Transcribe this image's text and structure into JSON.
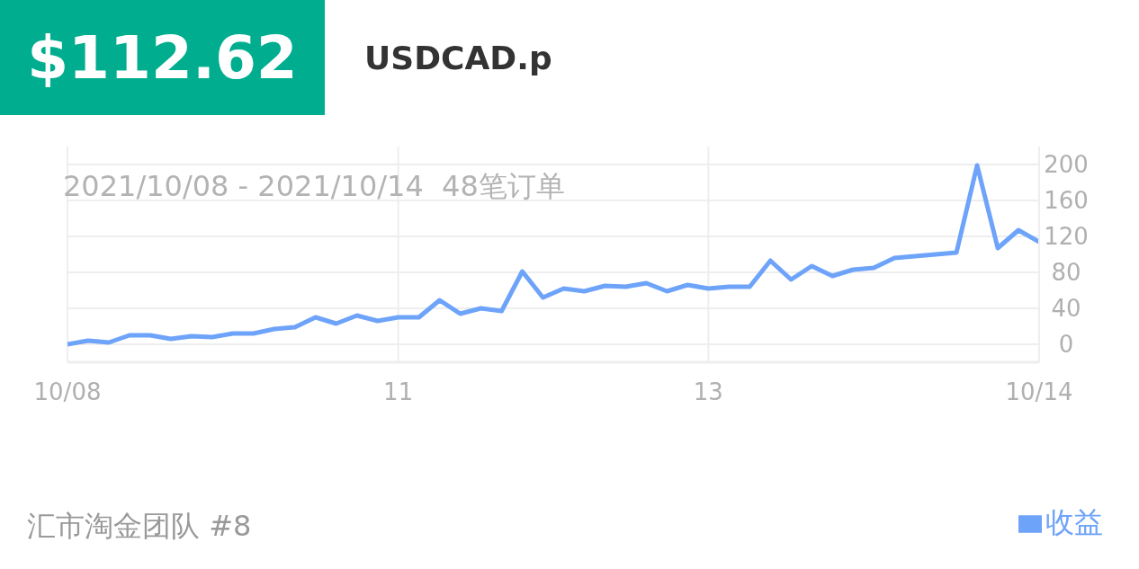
{
  "chart_data": {
    "type": "line",
    "title": "$112.62",
    "subtitle": "USDCAD.p",
    "annotations": [
      "2021/10/08 - 2021/10/14  48笔订单",
      "汇市淘金团队 #8"
    ],
    "categories": [
      "10/08",
      null,
      null,
      null,
      null,
      null,
      null,
      null,
      null,
      null,
      null,
      null,
      null,
      null,
      null,
      null,
      "11",
      null,
      null,
      null,
      null,
      null,
      null,
      null,
      null,
      null,
      null,
      null,
      null,
      null,
      null,
      "13",
      null,
      null,
      null,
      null,
      null,
      null,
      null,
      null,
      null,
      null,
      null,
      null,
      null,
      null,
      null,
      "10/14"
    ],
    "series": [
      {
        "name": "收益",
        "color": "#6ea3fa",
        "values": [
          0,
          4,
          2,
          10,
          10,
          6,
          9,
          8,
          12,
          12,
          17,
          19,
          30,
          23,
          32,
          26,
          30,
          30,
          49,
          34,
          40,
          37,
          81,
          52,
          62,
          59,
          65,
          64,
          68,
          59,
          66,
          62,
          64,
          64,
          93,
          72,
          87,
          76,
          83,
          85,
          96,
          98,
          100,
          102,
          199,
          107,
          127,
          114
        ]
      }
    ],
    "ylim": [
      -20,
      220
    ],
    "yticks": [
      0,
      40,
      80,
      120,
      160,
      200
    ],
    "grid": true,
    "legend": "bottom right",
    "marker": "none",
    "line_style": "solid"
  }
}
